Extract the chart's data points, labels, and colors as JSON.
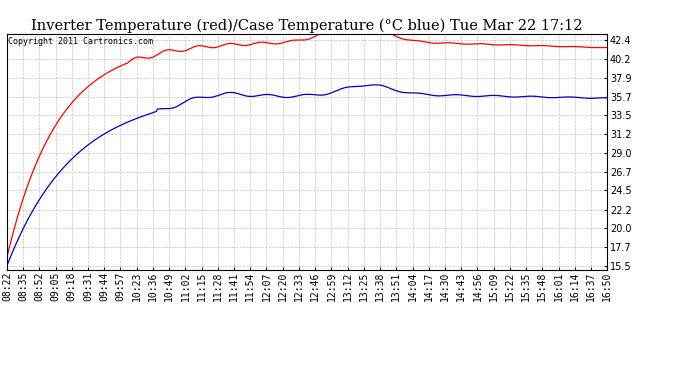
{
  "title": "Inverter Temperature (red)/Case Temperature (°C blue) Tue Mar 22 17:12",
  "copyright": "Copyright 2011 Cartronics.com",
  "yticks": [
    15.5,
    17.7,
    20.0,
    22.2,
    24.5,
    26.7,
    29.0,
    31.2,
    33.5,
    35.7,
    37.9,
    40.2,
    42.4
  ],
  "ylim": [
    15.0,
    43.2
  ],
  "xtick_labels": [
    "08:22",
    "08:35",
    "08:52",
    "09:05",
    "09:18",
    "09:31",
    "09:44",
    "09:57",
    "10:23",
    "10:36",
    "10:49",
    "11:02",
    "11:15",
    "11:28",
    "11:41",
    "11:54",
    "12:07",
    "12:20",
    "12:33",
    "12:46",
    "12:59",
    "13:12",
    "13:25",
    "13:38",
    "13:51",
    "14:04",
    "14:17",
    "14:30",
    "14:43",
    "14:56",
    "15:09",
    "15:22",
    "15:35",
    "15:48",
    "16:01",
    "16:14",
    "16:37",
    "16:50"
  ],
  "background_color": "#ffffff",
  "plot_bg_color": "#ffffff",
  "grid_color": "#bbbbbb",
  "title_fontsize": 10.5,
  "tick_fontsize": 7,
  "red_line_color": "#ff0000",
  "blue_line_color": "#0000cc",
  "figwidth": 6.9,
  "figheight": 3.75,
  "dpi": 100
}
